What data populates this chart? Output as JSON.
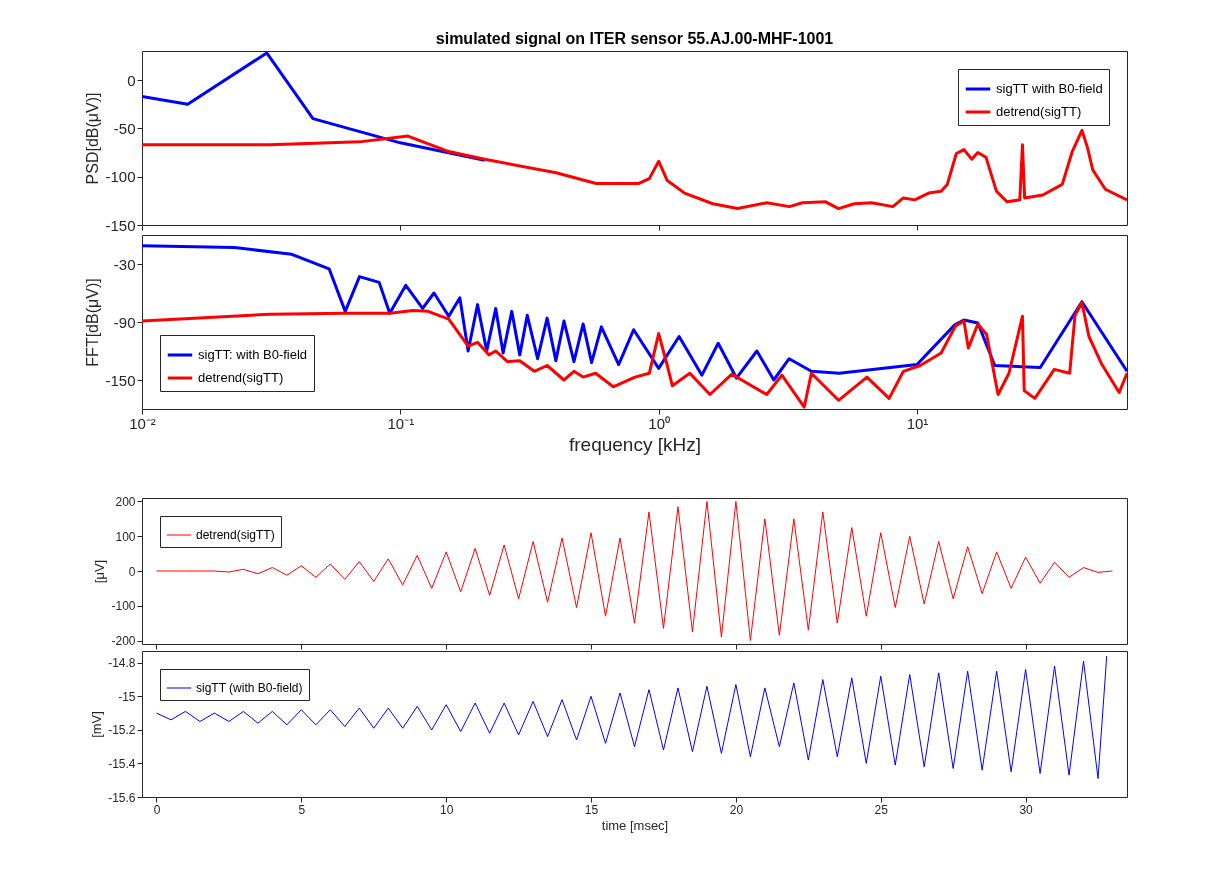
{
  "chart_data": [
    {
      "type": "line",
      "title": "simulated signal on ITER sensor 55.AJ.00-MHF-1001",
      "ylabel": "PSD[dB(μV)]",
      "log": "x",
      "xlim": [
        0.01,
        65
      ],
      "xticks": [
        0.01,
        0.1,
        1,
        10
      ],
      "ylim": [
        -150,
        30
      ],
      "yticks": [
        -150,
        -100,
        -50,
        0
      ],
      "tick_labels": "y",
      "legend": "top right",
      "series": [
        {
          "name": "sigTT with B0-field",
          "color": "#0000ff",
          "x": [
            0.01,
            0.01503,
            0.0304,
            0.0459,
            0.1,
            0.212
          ],
          "values": [
            -17,
            -25,
            28,
            -40,
            -65,
            -83
          ]
        },
        {
          "name": "detrend(sigTT)",
          "color": "#ff0000",
          "x": [
            0.01,
            0.0313,
            0.0695,
            0.107,
            0.154,
            0.212,
            0.401,
            0.573,
            0.839,
            0.92,
            1.0,
            1.08,
            1.26,
            1.62,
            2.02,
            2.62,
            3.21,
            3.6,
            4.43,
            4.97,
            5.72,
            6.67,
            8.06,
            8.86,
            9.8,
            11.1,
            12.4,
            13.1,
            14.2,
            15.2,
            16.3,
            17.2,
            18.5,
            20.3,
            22.3,
            25.0,
            25.6,
            26.1,
            30.7,
            36.5,
            39.9,
            43.5,
            45.7,
            47.9,
            53.6,
            65
          ],
          "values": [
            -67,
            -67,
            -64,
            -58,
            -74,
            -82,
            -96,
            -107,
            -107,
            -102,
            -84,
            -104,
            -117,
            -128,
            -133,
            -127,
            -131,
            -127,
            -126,
            -133,
            -128,
            -127,
            -131,
            -122,
            -124,
            -117,
            -115,
            -108,
            -76,
            -72,
            -82,
            -75,
            -80,
            -115,
            -126,
            -124,
            -67,
            -122,
            -119,
            -108,
            -74,
            -52,
            -70,
            -93,
            -113,
            -124
          ]
        }
      ]
    },
    {
      "type": "line",
      "xlabel": "frequency [kHz]",
      "ylabel": "FFT[dB(μV)]",
      "log": "x",
      "xlim": [
        0.01,
        65
      ],
      "xticks": [
        {
          "value": 0.01,
          "label": "10⁻²"
        },
        {
          "value": 0.1,
          "label": "10⁻¹"
        },
        {
          "value": 1,
          "label": "10⁰"
        },
        {
          "value": 10,
          "label": "10¹"
        }
      ],
      "ylim": [
        -180,
        0
      ],
      "yticks": [
        -150,
        -90,
        -30
      ],
      "legend": "bottom left",
      "series": [
        {
          "name": "sigTT: with B0-field",
          "color": "#0000ff",
          "x": [
            0.01,
            0.0228,
            0.038,
            0.053,
            0.0612,
            0.0695,
            0.0828,
            0.091,
            0.105,
            0.122,
            0.135,
            0.154,
            0.17,
            0.183,
            0.199,
            0.216,
            0.234,
            0.25,
            0.27,
            0.29,
            0.31,
            0.34,
            0.37,
            0.4,
            0.43,
            0.47,
            0.51,
            0.55,
            0.6,
            0.7,
            0.8,
            1.0,
            1.2,
            1.47,
            1.7,
            2.0,
            2.4,
            2.79,
            3.2,
            3.9,
            5,
            10,
            14,
            15.2,
            17.2,
            20,
            30,
            43.5,
            65
          ],
          "values": [
            -11,
            -13,
            -20,
            -35,
            -79,
            -43,
            -49,
            -81,
            -52,
            -76,
            -60,
            -84,
            -65,
            -120,
            -72,
            -120,
            -76,
            -122,
            -79,
            -124,
            -83,
            -128,
            -86,
            -130,
            -89,
            -131,
            -92,
            -132,
            -95,
            -134,
            -98,
            -138,
            -105,
            -145,
            -112,
            -148,
            -120,
            -150,
            -128,
            -141,
            -143,
            -134,
            -93,
            -88,
            -91,
            -135,
            -137,
            -69,
            -141
          ]
        },
        {
          "name": "detrend(sigTT)",
          "color": "#ff0000",
          "x": [
            0.01,
            0.0313,
            0.0612,
            0.091,
            0.112,
            0.128,
            0.154,
            0.183,
            0.199,
            0.22,
            0.234,
            0.26,
            0.29,
            0.33,
            0.37,
            0.43,
            0.47,
            0.51,
            0.57,
            0.667,
            0.81,
            0.92,
            1.0,
            1.08,
            1.13,
            1.32,
            1.58,
            1.92,
            2.62,
            3.0,
            3.66,
            3.9,
            4.97,
            6.4,
            7.8,
            8.86,
            10.3,
            12.4,
            14.1,
            15.2,
            15.8,
            17.2,
            18.6,
            20.6,
            22.7,
            25.6,
            26,
            28.6,
            34,
            39,
            40.9,
            43.5,
            46.3,
            52,
            60.6,
            65
          ],
          "values": [
            -89,
            -82,
            -81,
            -81,
            -78,
            -79,
            -87,
            -115,
            -111,
            -124,
            -120,
            -131,
            -130,
            -141,
            -135,
            -150,
            -141,
            -147,
            -143,
            -157,
            -147,
            -143,
            -102,
            -135,
            -156,
            -143,
            -165,
            -144,
            -165,
            -145,
            -178,
            -143,
            -171,
            -147,
            -169,
            -141,
            -135,
            -122,
            -94,
            -89,
            -117,
            -92,
            -103,
            -165,
            -143,
            -84,
            -161,
            -169,
            -139,
            -143,
            -83,
            -70,
            -105,
            -134,
            -163,
            -143
          ]
        }
      ]
    },
    {
      "type": "line",
      "ylabel": "[μV]",
      "xlim": [
        -0.5,
        33.5
      ],
      "xticks": [
        0,
        5,
        10,
        15,
        20,
        25,
        30
      ],
      "ylim": [
        -210,
        210
      ],
      "yticks": [
        -200,
        -100,
        0,
        100,
        200
      ],
      "tick_labels": "y",
      "legend": "top left",
      "series": [
        {
          "name": "detrend(sigTT)",
          "color": "#ff0000",
          "x": [
            0,
            0.5,
            1,
            1.5,
            2,
            2.5,
            3,
            3.5,
            4,
            4.5,
            5,
            5.5,
            6,
            6.5,
            7,
            7.5,
            8,
            8.5,
            9,
            9.5,
            10,
            10.5,
            11,
            11.5,
            12,
            12.5,
            13,
            13.5,
            14,
            14.5,
            15,
            15.5,
            16,
            16.5,
            17,
            17.5,
            18,
            18.5,
            19,
            19.5,
            20,
            20.5,
            21,
            21.5,
            22,
            22.5,
            23,
            23.5,
            24,
            24.5,
            25,
            25.5,
            26,
            26.5,
            27,
            27.5,
            28,
            28.5,
            29,
            29.5,
            30,
            30.5,
            31,
            31.5,
            32,
            32.5,
            33
          ],
          "values": [
            0,
            0,
            0,
            0,
            0,
            -3,
            5,
            -8,
            10,
            -12,
            15,
            -18,
            20,
            -24,
            27,
            -30,
            35,
            -40,
            45,
            -50,
            55,
            -60,
            65,
            -70,
            75,
            -80,
            85,
            -90,
            95,
            -105,
            110,
            -130,
            95,
            -150,
            170,
            -165,
            185,
            -175,
            200,
            -190,
            200,
            -200,
            150,
            -185,
            150,
            -170,
            170,
            -150,
            125,
            -130,
            110,
            -105,
            100,
            -95,
            85,
            -80,
            70,
            -65,
            55,
            -50,
            40,
            -35,
            25,
            -18,
            10,
            -4,
            0
          ]
        }
      ]
    },
    {
      "type": "line",
      "xlabel": "time [msec]",
      "ylabel": "[mV]",
      "xlim": [
        -0.5,
        33.5
      ],
      "xticks": [
        0,
        5,
        10,
        15,
        20,
        25,
        30
      ],
      "ylim": [
        -15.6,
        -14.73
      ],
      "yticks": [
        -15.6,
        -15.4,
        -15.2,
        -15,
        -14.8
      ],
      "legend": "top left",
      "series": [
        {
          "name": "sigTT (with B0-field)",
          "color": "#0000ff",
          "x": [
            0,
            0.5,
            1,
            1.5,
            2,
            2.5,
            3,
            3.5,
            4,
            4.5,
            5,
            5.5,
            6,
            6.5,
            7,
            7.5,
            8,
            8.5,
            9,
            9.5,
            10,
            10.5,
            11,
            11.5,
            12,
            12.5,
            13,
            13.5,
            14,
            14.5,
            15,
            15.5,
            16,
            16.5,
            17,
            17.5,
            18,
            18.5,
            19,
            19.5,
            20,
            20.5,
            21,
            21.5,
            22,
            22.5,
            23,
            23.5,
            24,
            24.5,
            25,
            25.5,
            26,
            26.5,
            27,
            27.5,
            28,
            28.5,
            29,
            29.5,
            30,
            30.5,
            31,
            31.5,
            32,
            32.5,
            32.8
          ],
          "values": [
            -15.1,
            -15.14,
            -15.09,
            -15.15,
            -15.1,
            -15.15,
            -15.09,
            -15.16,
            -15.09,
            -15.17,
            -15.08,
            -15.17,
            -15.08,
            -15.18,
            -15.07,
            -15.19,
            -15.07,
            -15.19,
            -15.06,
            -15.2,
            -15.05,
            -15.21,
            -15.04,
            -15.22,
            -15.04,
            -15.23,
            -15.03,
            -15.24,
            -15.02,
            -15.26,
            -15.0,
            -15.28,
            -14.98,
            -15.3,
            -14.96,
            -15.32,
            -14.95,
            -15.33,
            -14.94,
            -15.34,
            -14.93,
            -15.36,
            -14.95,
            -15.3,
            -14.92,
            -15.38,
            -14.9,
            -15.36,
            -14.89,
            -15.4,
            -14.88,
            -15.41,
            -14.87,
            -15.42,
            -14.86,
            -15.43,
            -14.85,
            -15.44,
            -14.85,
            -15.45,
            -14.84,
            -15.46,
            -14.82,
            -15.47,
            -14.79,
            -15.49,
            -14.76
          ]
        }
      ]
    }
  ]
}
